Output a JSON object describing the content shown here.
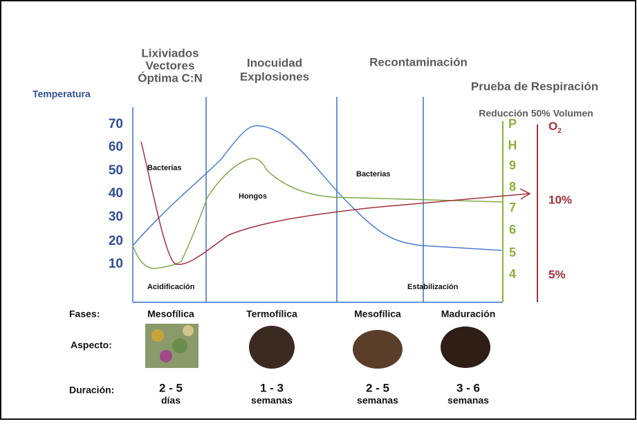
{
  "headers": {
    "lixiviados": [
      "Lixiviados",
      "Vectores",
      "Óptima C:N"
    ],
    "inocuidad": [
      "Inocuidad",
      "Explosiones"
    ],
    "recontaminacion": "Recontaminación",
    "prueba": "Prueba de Respiración",
    "reduccion": "Reducción 50% Volumen"
  },
  "axis_title": "Temperatura",
  "temperature_labels": [
    "70",
    "60",
    "50",
    "40",
    "30",
    "20",
    "10"
  ],
  "ph_labels": [
    "P",
    "H",
    "9",
    "8",
    "7",
    "6",
    "5",
    "4"
  ],
  "o2": {
    "label": "O",
    "subscript": "2",
    "levels": [
      "10%",
      "5%"
    ]
  },
  "annotations": {
    "bacterias_1": "Bacterias",
    "hongos": "Hongos",
    "bacterias_2": "Bacterias",
    "acidificacion": "Acidificación",
    "estabilizacion": "Estabilización"
  },
  "rows": {
    "fases": "Fases:",
    "aspecto": "Aspecto:",
    "duracion": "Duración:"
  },
  "phases": [
    {
      "name": "Mesofílica",
      "duration": [
        "2 - 5",
        "días"
      ]
    },
    {
      "name": "Termofílica",
      "duration": [
        "1 - 3",
        "semanas"
      ]
    },
    {
      "name": "Mesofílica",
      "duration": [
        "2 - 5",
        "semanas"
      ]
    },
    {
      "name": "Maduración",
      "duration": [
        "3 - 6",
        "semanas"
      ]
    }
  ]
}
